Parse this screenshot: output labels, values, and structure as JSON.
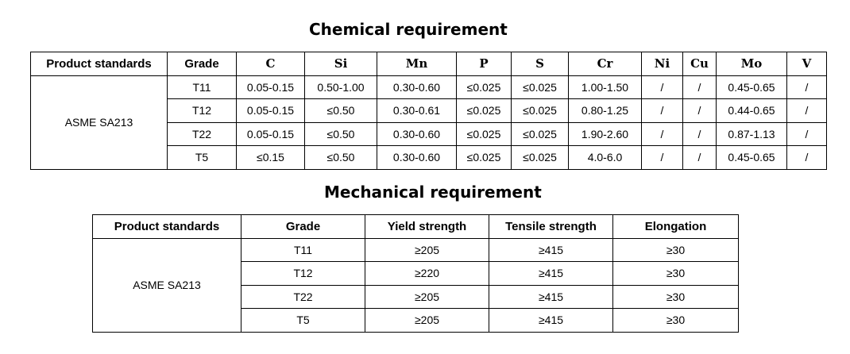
{
  "chemical": {
    "title": "Chemical requirement",
    "headers": [
      "Product standards",
      "Grade",
      "C",
      "Si",
      "Mn",
      "P",
      "S",
      "Cr",
      "Ni",
      "Cu",
      "Mo",
      "V"
    ],
    "standard": "ASME SA213",
    "rows": [
      [
        "T11",
        "0.05-0.15",
        "0.50-1.00",
        "0.30-0.60",
        "≤0.025",
        "≤0.025",
        "1.00-1.50",
        "/",
        "/",
        "0.45-0.65",
        "/"
      ],
      [
        "T12",
        "0.05-0.15",
        "≤0.50",
        "0.30-0.61",
        "≤0.025",
        "≤0.025",
        "0.80-1.25",
        "/",
        "/",
        "0.44-0.65",
        "/"
      ],
      [
        "T22",
        "0.05-0.15",
        "≤0.50",
        "0.30-0.60",
        "≤0.025",
        "≤0.025",
        "1.90-2.60",
        "/",
        "/",
        "0.87-1.13",
        "/"
      ],
      [
        "T5",
        "≤0.15",
        "≤0.50",
        "0.30-0.60",
        "≤0.025",
        "≤0.025",
        "4.0-6.0",
        "/",
        "/",
        "0.45-0.65",
        "/"
      ]
    ]
  },
  "mechanical": {
    "title": "Mechanical requirement",
    "headers": [
      "Product standards",
      "Grade",
      "Yield strength",
      "Tensile strength",
      "Elongation"
    ],
    "standard": "ASME SA213",
    "rows": [
      [
        "T11",
        "≥205",
        "≥415",
        "≥30"
      ],
      [
        "T12",
        "≥220",
        "≥415",
        "≥30"
      ],
      [
        "T22",
        "≥205",
        "≥415",
        "≥30"
      ],
      [
        "T5",
        "≥205",
        "≥415",
        "≥30"
      ]
    ]
  }
}
